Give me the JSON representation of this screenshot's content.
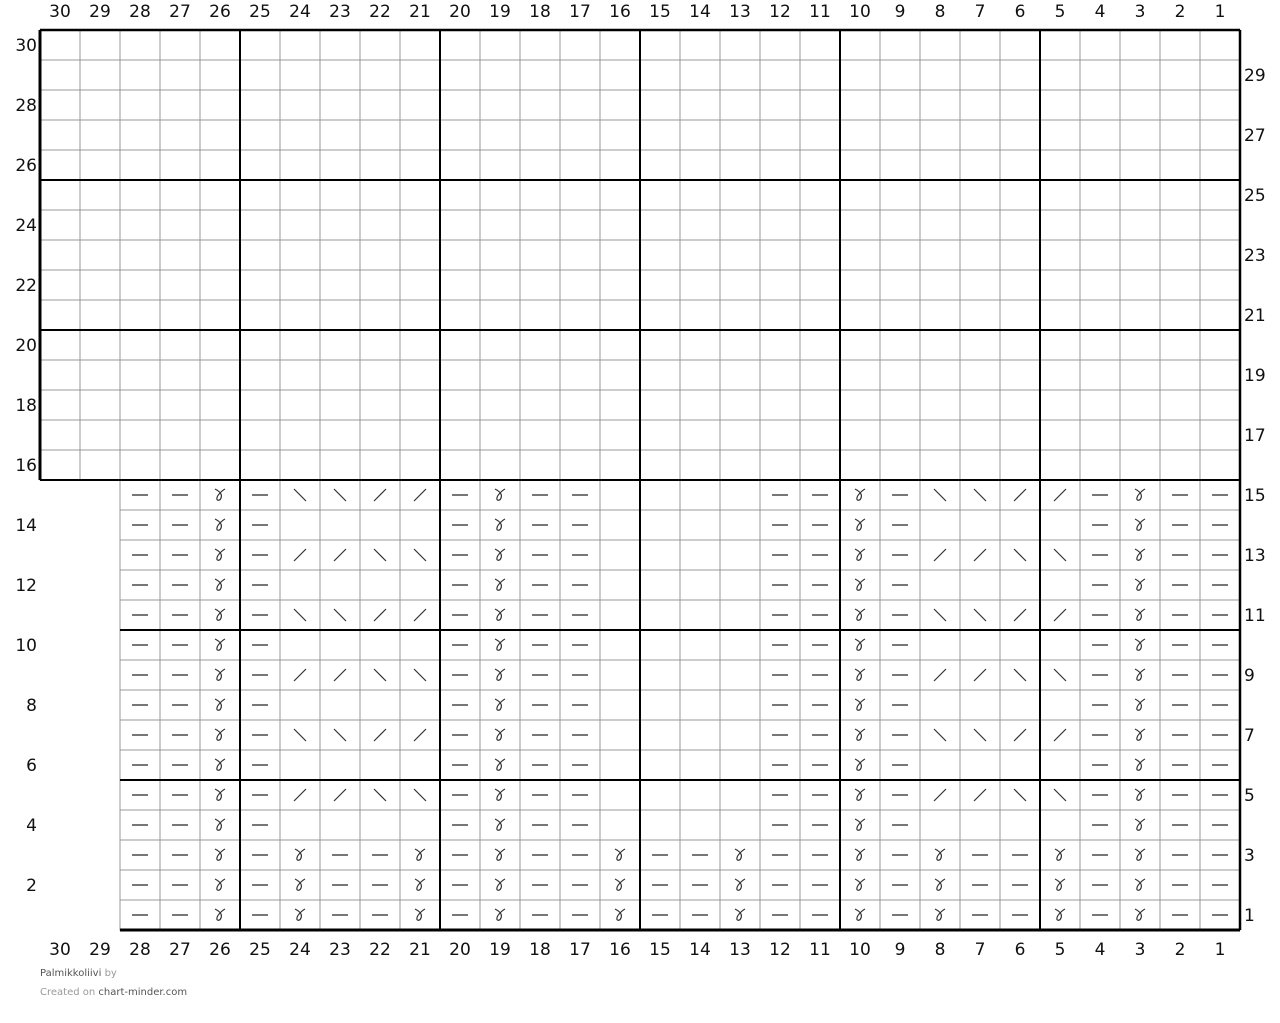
{
  "chart": {
    "columns": 30,
    "rows": 30,
    "column_numbers": [
      30,
      29,
      28,
      27,
      26,
      25,
      24,
      23,
      22,
      21,
      20,
      19,
      18,
      17,
      16,
      15,
      14,
      13,
      12,
      11,
      10,
      9,
      8,
      7,
      6,
      5,
      4,
      3,
      2,
      1
    ],
    "row_numbers_left": [
      30,
      28,
      26,
      24,
      22,
      20,
      18,
      16,
      14,
      12,
      10,
      8,
      6,
      4,
      2
    ],
    "row_numbers_right": [
      29,
      27,
      25,
      23,
      21,
      19,
      17,
      15,
      13,
      11,
      9,
      7,
      5,
      3,
      1
    ],
    "symbol_key": {
      "p": "purl",
      "t": "twisted-knit",
      "b": "backslash-cable",
      "f": "slash-cable",
      " ": "knit-empty"
    },
    "colors": {
      "grid": "#999999",
      "major_grid": "#000000",
      "symbol": "#333333",
      "purl": "#777777"
    },
    "upper_rows_first_column": 30,
    "lower_rows_first_column": 28,
    "stitch_rows": {
      "15": "pptpbbffptpp    pptpbbffptpp",
      "14": "pptp    ptpp    pptp    ptpp",
      "13": "pptpffbbptpp    pptpffbbptpp",
      "12": "pptp    ptpp    pptp    ptpp",
      "11": "pptpbbffptpp    pptpbbffptpp",
      "10": "pptp    ptpp    pptp    ptpp",
      "9": "pptpffbbptpp    pptpffbbptpp",
      "8": "pptp    ptpp    pptp    ptpp",
      "7": "pptpbbffptpp    pptpbbffptpp",
      "6": "pptp    ptpp    pptp    ptpp",
      "5": "pptpffbbptpp    pptpffbbptpp",
      "4": "pptp    ptpp    pptp    ptpp",
      "3": "pptptpptptpptpptpptptpptptpp",
      "2": "pptptpptptpptpptpptptpptptpp",
      "1": "pptptpptptpptpptpptptpptptpp"
    }
  },
  "footer": {
    "pattern_name": "Palmikkoliivi",
    "by": "by",
    "created_on": "Created on",
    "site": "chart-minder.com"
  }
}
